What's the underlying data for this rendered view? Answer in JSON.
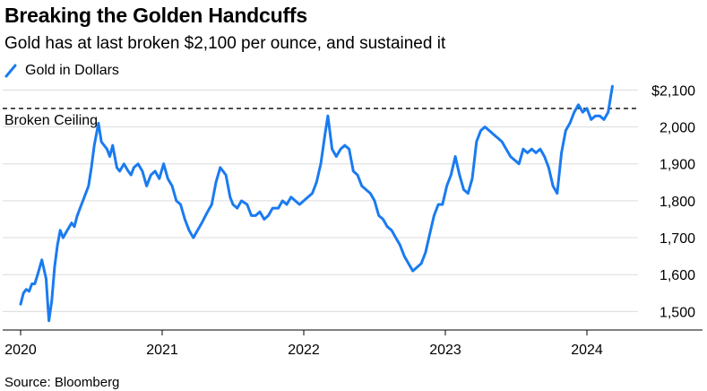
{
  "chart_data": {
    "type": "line",
    "title": "Breaking the Golden Handcuffs",
    "subtitle": "Gold has at last broken $2,100 per ounce, and sustained it",
    "source": "Source: Bloomberg",
    "legend_position": "top-left",
    "grid": "horizontal",
    "y_axis_side": "right",
    "x_ticks": [
      {
        "value": 2020,
        "label": "2020"
      },
      {
        "value": 2021,
        "label": "2021"
      },
      {
        "value": 2022,
        "label": "2022"
      },
      {
        "value": 2023,
        "label": "2023"
      },
      {
        "value": 2024,
        "label": "2024"
      }
    ],
    "y_ticks": [
      {
        "value": 1500,
        "label": "1,500"
      },
      {
        "value": 1600,
        "label": "1,600"
      },
      {
        "value": 1700,
        "label": "1,700"
      },
      {
        "value": 1800,
        "label": "1,800"
      },
      {
        "value": 1900,
        "label": "1,900"
      },
      {
        "value": 2000,
        "label": "2,000"
      },
      {
        "value": 2100,
        "label": "$2,100"
      }
    ],
    "xlim": [
      2020,
      2024.75
    ],
    "ylim": [
      1450,
      2130
    ],
    "reference_line": {
      "value": 2050,
      "label": "Broken Ceiling",
      "style": "dashed"
    },
    "series": [
      {
        "name": "Gold in Dollars",
        "color": "#1a7bf0",
        "x": [
          2020.0,
          2020.02,
          2020.04,
          2020.06,
          2020.08,
          2020.1,
          2020.12,
          2020.15,
          2020.18,
          2020.2,
          2020.22,
          2020.24,
          2020.26,
          2020.28,
          2020.3,
          2020.33,
          2020.36,
          2020.38,
          2020.4,
          2020.42,
          2020.45,
          2020.48,
          2020.5,
          2020.52,
          2020.55,
          2020.57,
          2020.59,
          2020.61,
          2020.63,
          2020.65,
          2020.68,
          2020.7,
          2020.73,
          2020.76,
          2020.78,
          2020.8,
          2020.83,
          2020.86,
          2020.89,
          2020.92,
          2020.95,
          2020.98,
          2021.01,
          2021.04,
          2021.07,
          2021.1,
          2021.13,
          2021.16,
          2021.19,
          2021.22,
          2021.25,
          2021.28,
          2021.32,
          2021.35,
          2021.38,
          2021.41,
          2021.45,
          2021.48,
          2021.5,
          2021.53,
          2021.56,
          2021.6,
          2021.63,
          2021.66,
          2021.69,
          2021.72,
          2021.75,
          2021.78,
          2021.82,
          2021.85,
          2021.88,
          2021.91,
          2021.94,
          2021.97,
          2022.0,
          2022.03,
          2022.06,
          2022.09,
          2022.12,
          2022.15,
          2022.17,
          2022.2,
          2022.23,
          2022.26,
          2022.29,
          2022.32,
          2022.35,
          2022.38,
          2022.41,
          2022.44,
          2022.47,
          2022.5,
          2022.53,
          2022.56,
          2022.59,
          2022.62,
          2022.65,
          2022.68,
          2022.71,
          2022.74,
          2022.77,
          2022.8,
          2022.83,
          2022.86,
          2022.89,
          2022.92,
          2022.95,
          2022.98,
          2023.01,
          2023.04,
          2023.07,
          2023.1,
          2023.13,
          2023.16,
          2023.19,
          2023.22,
          2023.25,
          2023.28,
          2023.31,
          2023.34,
          2023.37,
          2023.4,
          2023.43,
          2023.46,
          2023.49,
          2023.52,
          2023.55,
          2023.58,
          2023.61,
          2023.64,
          2023.67,
          2023.7,
          2023.73,
          2023.76,
          2023.79,
          2023.82,
          2023.85,
          2023.88,
          2023.91,
          2023.94,
          2023.97,
          2024.0,
          2024.03,
          2024.06,
          2024.09,
          2024.12,
          2024.15,
          2024.18
        ],
        "y": [
          1520,
          1550,
          1560,
          1555,
          1575,
          1575,
          1600,
          1640,
          1590,
          1475,
          1530,
          1620,
          1680,
          1720,
          1700,
          1720,
          1740,
          1730,
          1760,
          1780,
          1810,
          1840,
          1890,
          1950,
          2010,
          1960,
          1950,
          1940,
          1920,
          1950,
          1890,
          1880,
          1900,
          1880,
          1870,
          1890,
          1900,
          1880,
          1840,
          1870,
          1880,
          1860,
          1900,
          1860,
          1840,
          1800,
          1790,
          1750,
          1720,
          1700,
          1720,
          1740,
          1770,
          1790,
          1850,
          1890,
          1870,
          1810,
          1790,
          1780,
          1800,
          1790,
          1760,
          1760,
          1770,
          1750,
          1760,
          1780,
          1780,
          1800,
          1790,
          1810,
          1800,
          1790,
          1800,
          1810,
          1820,
          1850,
          1900,
          1980,
          2030,
          1940,
          1920,
          1940,
          1950,
          1940,
          1880,
          1870,
          1840,
          1830,
          1820,
          1800,
          1760,
          1750,
          1730,
          1720,
          1700,
          1680,
          1650,
          1630,
          1610,
          1620,
          1630,
          1660,
          1710,
          1760,
          1790,
          1790,
          1840,
          1870,
          1920,
          1870,
          1830,
          1820,
          1860,
          1960,
          1990,
          2000,
          1990,
          1980,
          1970,
          1960,
          1940,
          1920,
          1910,
          1900,
          1940,
          1930,
          1940,
          1930,
          1940,
          1920,
          1890,
          1840,
          1820,
          1930,
          1990,
          2010,
          2040,
          2060,
          2040,
          2050,
          2020,
          2030,
          2030,
          2020,
          2040,
          2110
        ]
      }
    ]
  }
}
